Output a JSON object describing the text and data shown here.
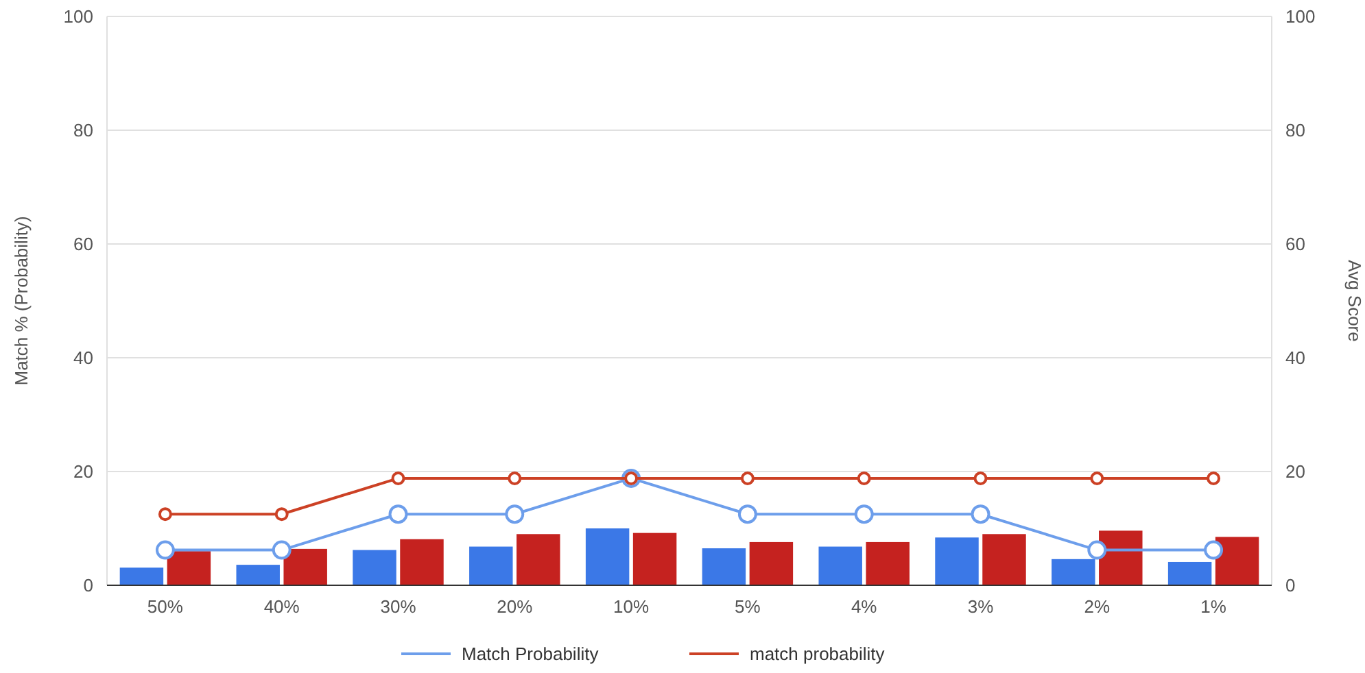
{
  "chart_data": {
    "type": "bar",
    "ylabel": "Match % (Probability)",
    "y2label": "Avg Score",
    "categories": [
      "50%",
      "40%",
      "30%",
      "20%",
      "10%",
      "5%",
      "4%",
      "3%",
      "2%",
      "1%"
    ],
    "series": [
      {
        "color": "#3b78e7",
        "values": [
          3.1,
          3.6,
          6.2,
          6.8,
          10.0,
          6.5,
          6.8,
          8.4,
          4.6,
          4.1
        ]
      },
      {
        "color": "#c5221f",
        "values": [
          6.0,
          6.4,
          8.1,
          9.0,
          9.2,
          7.6,
          7.6,
          9.0,
          9.6,
          8.5
        ]
      },
      {
        "type": "line",
        "name": "Match Probability",
        "color": "#6d9eeb",
        "values": [
          6.2,
          6.2,
          12.5,
          12.5,
          18.8,
          12.5,
          12.5,
          12.5,
          6.2,
          6.2
        ]
      },
      {
        "type": "line",
        "name": "match probability",
        "color": "#cc4125",
        "values": [
          12.5,
          12.5,
          18.8,
          18.8,
          18.8,
          18.8,
          18.8,
          18.8,
          18.8,
          18.8
        ]
      }
    ],
    "ylim": [
      0,
      100
    ],
    "yticks": [
      0,
      20,
      40,
      60,
      80,
      100
    ],
    "y2lim": [
      0,
      100
    ],
    "y2ticks": [
      0,
      20,
      40,
      60,
      80,
      100
    ],
    "grid": "y",
    "legend": "bottom",
    "marker": "circle",
    "line_style": "solid"
  }
}
